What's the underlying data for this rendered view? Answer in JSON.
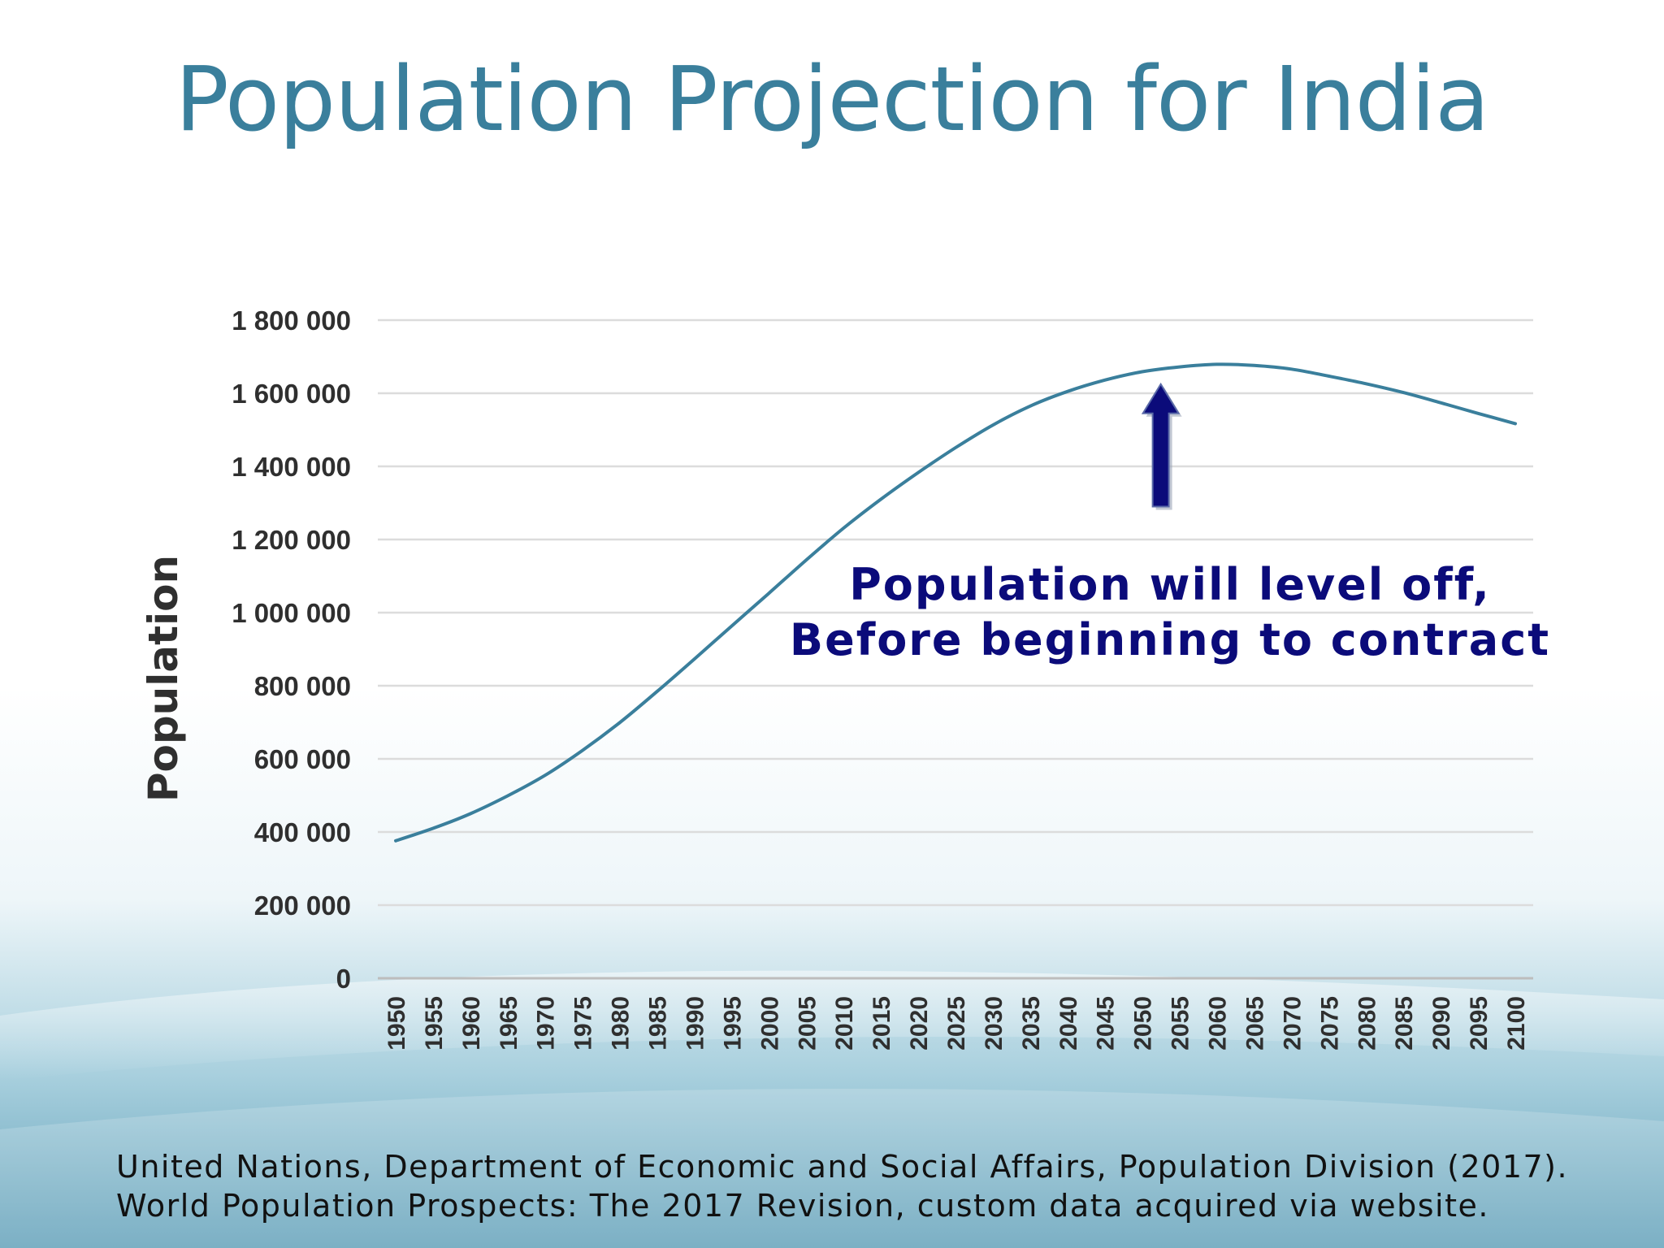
{
  "slide": {
    "title": "Population Projection for India",
    "source_line1": "United Nations, Department of Economic and Social Affairs, Population Division (2017).",
    "source_line2": "World Population Prospects: The 2017 Revision, custom data acquired via website.",
    "colors": {
      "title": "#3a7f9c",
      "line": "#3a7f9c",
      "annotation": "#0b0b7a",
      "arrow": "#0b0b7a"
    }
  },
  "chart_data": {
    "type": "line",
    "title": "",
    "xlabel": "",
    "ylabel": "Population",
    "ylim": [
      0,
      1800000
    ],
    "yticks": [
      0,
      200000,
      400000,
      600000,
      800000,
      1000000,
      1200000,
      1400000,
      1600000,
      1800000
    ],
    "ytick_labels": [
      "0",
      "200 000",
      "400 000",
      "600 000",
      "800 000",
      "1 000 000",
      "1 200 000",
      "1 400 000",
      "1 600 000",
      "1 800 000"
    ],
    "grid": true,
    "x": [
      "1950",
      "1955",
      "1960",
      "1965",
      "1970",
      "1975",
      "1980",
      "1985",
      "1990",
      "1995",
      "2000",
      "2005",
      "2010",
      "2015",
      "2020",
      "2025",
      "2030",
      "2035",
      "2040",
      "2045",
      "2050",
      "2055",
      "2060",
      "2065",
      "2070",
      "2075",
      "2080",
      "2085",
      "2090",
      "2095",
      "2100"
    ],
    "series": [
      {
        "values": [
          376000,
          410000,
          450000,
          499000,
          555000,
          623000,
          699000,
          784000,
          873000,
          963000,
          1053000,
          1144000,
          1231000,
          1310000,
          1383000,
          1451000,
          1513000,
          1565000,
          1605000,
          1636000,
          1659000,
          1672000,
          1679000,
          1676000,
          1666000,
          1647000,
          1626000,
          1602000,
          1574000,
          1545000,
          1517000
        ]
      }
    ],
    "annotation": {
      "line1": "Population will level off,",
      "line2": "Before beginning to contract",
      "arrow_year": "2052.5",
      "arrow_from_value": 1290000,
      "arrow_to_value": 1625000
    }
  }
}
